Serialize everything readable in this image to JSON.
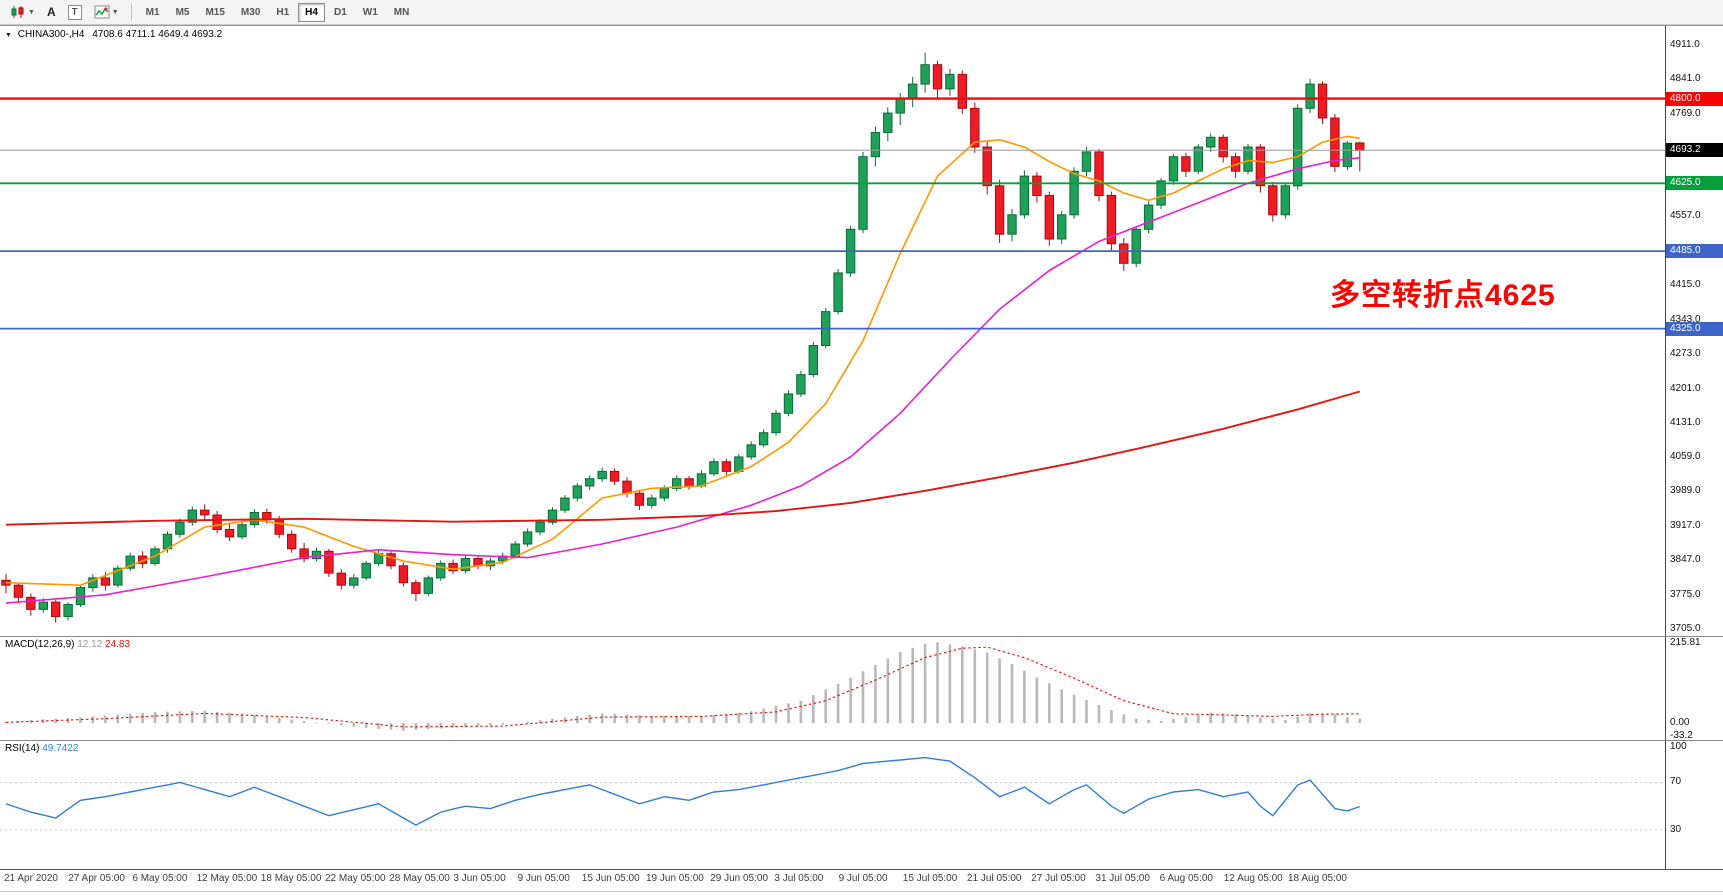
{
  "toolbar": {
    "chart_type_tooltip": "candlestick-chart",
    "buttons": [
      "A",
      "T"
    ],
    "timeframes": [
      "M1",
      "M5",
      "M15",
      "M30",
      "H1",
      "H4",
      "D1",
      "W1",
      "MN"
    ],
    "active_timeframe": "H4"
  },
  "chart": {
    "symbol_title": "CHINA300-,H4",
    "ohlc_text": "4708.6 4711.1 4649.4 4693.2",
    "annotation": "多空转折点4625",
    "annotation_color": "#ff0000",
    "price_ticks": [
      {
        "t": "4911.0",
        "v": 4911
      },
      {
        "t": "4841.0",
        "v": 4841
      },
      {
        "t": "4769.0",
        "v": 4769
      },
      {
        "t": "4557.0",
        "v": 4557
      },
      {
        "t": "4415.0",
        "v": 4415
      },
      {
        "t": "4343.0",
        "v": 4343
      },
      {
        "t": "4273.0",
        "v": 4273
      },
      {
        "t": "4201.0",
        "v": 4201
      },
      {
        "t": "4131.0",
        "v": 4131
      },
      {
        "t": "4059.0",
        "v": 4059
      },
      {
        "t": "3989.0",
        "v": 3989
      },
      {
        "t": "3917.0",
        "v": 3917
      },
      {
        "t": "3847.0",
        "v": 3847
      },
      {
        "t": "3775.0",
        "v": 3775
      },
      {
        "t": "3705.0",
        "v": 3705
      }
    ],
    "price_badges": [
      {
        "t": "4800.0",
        "v": 4800,
        "bg": "#f40606"
      },
      {
        "t": "4693.2",
        "v": 4693.2,
        "bg": "#000000"
      },
      {
        "t": "4625.0",
        "v": 4625,
        "bg": "#089d3c"
      },
      {
        "t": "4485.0",
        "v": 4485,
        "bg": "#3e64c8"
      },
      {
        "t": "4325.0",
        "v": 4325,
        "bg": "#3e64c8"
      }
    ],
    "hlines": [
      {
        "name": "resistance-line-4800",
        "price": 4800,
        "color": "#f40606",
        "width": 2.4
      },
      {
        "name": "current-price-line",
        "price": 4693.2,
        "color": "#9c9c9c",
        "width": 1
      },
      {
        "name": "pivot-line-4625",
        "price": 4625,
        "color": "#089d3c",
        "width": 1.8
      },
      {
        "name": "support-line-4485",
        "price": 4485,
        "color": "#3e64c8",
        "width": 1.8
      },
      {
        "name": "support-line-4325",
        "price": 4325,
        "color": "#3e64c8",
        "width": 1.8
      }
    ]
  },
  "macd": {
    "label": "MACD(12,26,9)",
    "value_main": "12.12",
    "value_signal": "24.83",
    "ticks": [
      {
        "t": "215.81",
        "v": 215.81
      },
      {
        "t": "0.00",
        "v": 0
      },
      {
        "t": "-33.2",
        "v": -33.2
      }
    ]
  },
  "rsi": {
    "label": "RSI(14)",
    "value": "49.7422",
    "ticks": [
      {
        "t": "100",
        "v": 100
      },
      {
        "t": "70",
        "v": 70
      },
      {
        "t": "30",
        "v": 30
      }
    ],
    "levels": [
      70,
      30
    ]
  },
  "time_axis": [
    "21 Apr 2020",
    "27 Apr 05:00",
    "6 May 05:00",
    "12 May 05:00",
    "18 May 05:00",
    "22 May 05:00",
    "28 May 05:00",
    "3 Jun 05:00",
    "9 Jun 05:00",
    "15 Jun 05:00",
    "19 Jun 05:00",
    "29 Jun 05:00",
    "3 Jul 05:00",
    "9 Jul 05:00",
    "15 Jul 05:00",
    "21 Jul 05:00",
    "27 Jul 05:00",
    "31 Jul 05:00",
    "6 Aug 05:00",
    "12 Aug 05:00",
    "18 Aug 05:00"
  ],
  "chart_data": {
    "type": "candlestick",
    "price_range": [
      3690,
      4950
    ],
    "candles_ohlc": [
      [
        3805,
        3818,
        3778,
        3795
      ],
      [
        3795,
        3800,
        3758,
        3770
      ],
      [
        3770,
        3778,
        3732,
        3745
      ],
      [
        3745,
        3768,
        3738,
        3760
      ],
      [
        3760,
        3765,
        3718,
        3730
      ],
      [
        3730,
        3760,
        3722,
        3755
      ],
      [
        3755,
        3795,
        3750,
        3790
      ],
      [
        3790,
        3818,
        3782,
        3810
      ],
      [
        3810,
        3822,
        3784,
        3795
      ],
      [
        3795,
        3836,
        3790,
        3830
      ],
      [
        3830,
        3862,
        3824,
        3855
      ],
      [
        3855,
        3865,
        3830,
        3840
      ],
      [
        3840,
        3876,
        3835,
        3870
      ],
      [
        3870,
        3906,
        3862,
        3900
      ],
      [
        3900,
        3932,
        3893,
        3925
      ],
      [
        3925,
        3958,
        3918,
        3950
      ],
      [
        3950,
        3962,
        3930,
        3940
      ],
      [
        3940,
        3948,
        3902,
        3910
      ],
      [
        3910,
        3922,
        3886,
        3895
      ],
      [
        3895,
        3928,
        3890,
        3920
      ],
      [
        3920,
        3952,
        3914,
        3945
      ],
      [
        3945,
        3953,
        3922,
        3930
      ],
      [
        3930,
        3938,
        3892,
        3900
      ],
      [
        3900,
        3908,
        3862,
        3870
      ],
      [
        3870,
        3882,
        3842,
        3850
      ],
      [
        3850,
        3872,
        3845,
        3865
      ],
      [
        3865,
        3870,
        3812,
        3820
      ],
      [
        3820,
        3828,
        3786,
        3795
      ],
      [
        3795,
        3818,
        3788,
        3810
      ],
      [
        3810,
        3845,
        3805,
        3840
      ],
      [
        3840,
        3868,
        3834,
        3860
      ],
      [
        3860,
        3866,
        3828,
        3835
      ],
      [
        3835,
        3842,
        3792,
        3800
      ],
      [
        3800,
        3806,
        3762,
        3778
      ],
      [
        3778,
        3815,
        3772,
        3810
      ],
      [
        3810,
        3846,
        3804,
        3840
      ],
      [
        3840,
        3848,
        3818,
        3825
      ],
      [
        3825,
        3856,
        3820,
        3850
      ],
      [
        3850,
        3857,
        3828,
        3835
      ],
      [
        3835,
        3852,
        3826,
        3845
      ],
      [
        3845,
        3862,
        3838,
        3855
      ],
      [
        3855,
        3886,
        3850,
        3880
      ],
      [
        3880,
        3912,
        3874,
        3905
      ],
      [
        3905,
        3931,
        3898,
        3925
      ],
      [
        3925,
        3956,
        3920,
        3950
      ],
      [
        3950,
        3981,
        3944,
        3975
      ],
      [
        3975,
        4006,
        3968,
        4000
      ],
      [
        4000,
        4022,
        3992,
        4015
      ],
      [
        4015,
        4038,
        4008,
        4030
      ],
      [
        4030,
        4036,
        4002,
        4010
      ],
      [
        4010,
        4018,
        3976,
        3985
      ],
      [
        3985,
        3992,
        3950,
        3960
      ],
      [
        3960,
        3982,
        3954,
        3975
      ],
      [
        3975,
        4001,
        3968,
        3995
      ],
      [
        3995,
        4022,
        3990,
        4015
      ],
      [
        4015,
        4021,
        3992,
        4000
      ],
      [
        4000,
        4032,
        3996,
        4025
      ],
      [
        4025,
        4057,
        4020,
        4050
      ],
      [
        4050,
        4056,
        4022,
        4030
      ],
      [
        4030,
        4066,
        4025,
        4060
      ],
      [
        4060,
        4092,
        4054,
        4085
      ],
      [
        4085,
        4117,
        4080,
        4110
      ],
      [
        4110,
        4157,
        4104,
        4150
      ],
      [
        4150,
        4197,
        4144,
        4190
      ],
      [
        4190,
        4238,
        4184,
        4230
      ],
      [
        4230,
        4298,
        4224,
        4290
      ],
      [
        4290,
        4368,
        4284,
        4360
      ],
      [
        4360,
        4448,
        4354,
        4440
      ],
      [
        4440,
        4538,
        4432,
        4530
      ],
      [
        4530,
        4690,
        4522,
        4680
      ],
      [
        4680,
        4742,
        4660,
        4730
      ],
      [
        4730,
        4782,
        4712,
        4770
      ],
      [
        4770,
        4812,
        4745,
        4800
      ],
      [
        4800,
        4845,
        4782,
        4830
      ],
      [
        4830,
        4895,
        4812,
        4870
      ],
      [
        4870,
        4878,
        4800,
        4820
      ],
      [
        4820,
        4862,
        4806,
        4850
      ],
      [
        4850,
        4858,
        4768,
        4780
      ],
      [
        4780,
        4792,
        4688,
        4700
      ],
      [
        4700,
        4712,
        4602,
        4620
      ],
      [
        4620,
        4632,
        4502,
        4520
      ],
      [
        4520,
        4572,
        4505,
        4560
      ],
      [
        4560,
        4652,
        4552,
        4640
      ],
      [
        4640,
        4648,
        4585,
        4600
      ],
      [
        4600,
        4608,
        4496,
        4510
      ],
      [
        4510,
        4568,
        4500,
        4560
      ],
      [
        4560,
        4658,
        4552,
        4650
      ],
      [
        4650,
        4700,
        4640,
        4690
      ],
      [
        4690,
        4696,
        4588,
        4600
      ],
      [
        4600,
        4608,
        4486,
        4500
      ],
      [
        4500,
        4512,
        4444,
        4460
      ],
      [
        4460,
        4536,
        4452,
        4530
      ],
      [
        4530,
        4588,
        4522,
        4580
      ],
      [
        4580,
        4636,
        4572,
        4630
      ],
      [
        4630,
        4686,
        4622,
        4680
      ],
      [
        4680,
        4688,
        4638,
        4650
      ],
      [
        4650,
        4706,
        4644,
        4700
      ],
      [
        4700,
        4728,
        4690,
        4720
      ],
      [
        4720,
        4726,
        4668,
        4680
      ],
      [
        4680,
        4688,
        4636,
        4650
      ],
      [
        4650,
        4706,
        4644,
        4700
      ],
      [
        4700,
        4706,
        4606,
        4620
      ],
      [
        4620,
        4628,
        4546,
        4560
      ],
      [
        4560,
        4626,
        4552,
        4620
      ],
      [
        4620,
        4788,
        4612,
        4780
      ],
      [
        4780,
        4841,
        4770,
        4830
      ],
      [
        4830,
        4836,
        4748,
        4760
      ],
      [
        4760,
        4768,
        4648,
        4660
      ],
      [
        4660,
        4712,
        4652,
        4708
      ],
      [
        4708.6,
        4711.1,
        4649.4,
        4693.2
      ]
    ],
    "ma_fast_orange": [
      [
        0,
        3800
      ],
      [
        6,
        3795
      ],
      [
        12,
        3855
      ],
      [
        16,
        3915
      ],
      [
        20,
        3930
      ],
      [
        24,
        3915
      ],
      [
        28,
        3875
      ],
      [
        32,
        3845
      ],
      [
        36,
        3828
      ],
      [
        40,
        3842
      ],
      [
        44,
        3890
      ],
      [
        48,
        3975
      ],
      [
        52,
        3995
      ],
      [
        56,
        4000
      ],
      [
        60,
        4040
      ],
      [
        63,
        4090
      ],
      [
        66,
        4170
      ],
      [
        69,
        4300
      ],
      [
        72,
        4480
      ],
      [
        75,
        4640
      ],
      [
        78,
        4710
      ],
      [
        80,
        4715
      ],
      [
        82,
        4700
      ],
      [
        84,
        4670
      ],
      [
        86,
        4645
      ],
      [
        88,
        4630
      ],
      [
        90,
        4605
      ],
      [
        92,
        4590
      ],
      [
        94,
        4605
      ],
      [
        96,
        4630
      ],
      [
        98,
        4655
      ],
      [
        100,
        4672
      ],
      [
        102,
        4668
      ],
      [
        104,
        4680
      ],
      [
        106,
        4710
      ],
      [
        108,
        4722
      ],
      [
        109,
        4718
      ]
    ],
    "ma_mid_magenta": [
      [
        0,
        3758
      ],
      [
        8,
        3775
      ],
      [
        16,
        3812
      ],
      [
        24,
        3852
      ],
      [
        30,
        3868
      ],
      [
        36,
        3858
      ],
      [
        42,
        3852
      ],
      [
        48,
        3880
      ],
      [
        54,
        3915
      ],
      [
        60,
        3960
      ],
      [
        64,
        4000
      ],
      [
        68,
        4060
      ],
      [
        72,
        4150
      ],
      [
        76,
        4260
      ],
      [
        80,
        4365
      ],
      [
        84,
        4445
      ],
      [
        88,
        4505
      ],
      [
        92,
        4545
      ],
      [
        96,
        4585
      ],
      [
        100,
        4625
      ],
      [
        104,
        4655
      ],
      [
        107,
        4672
      ],
      [
        109,
        4678
      ]
    ],
    "ma_slow_red": [
      [
        0,
        3920
      ],
      [
        12,
        3928
      ],
      [
        24,
        3932
      ],
      [
        36,
        3926
      ],
      [
        48,
        3930
      ],
      [
        56,
        3938
      ],
      [
        62,
        3948
      ],
      [
        68,
        3965
      ],
      [
        74,
        3990
      ],
      [
        80,
        4018
      ],
      [
        86,
        4048
      ],
      [
        92,
        4082
      ],
      [
        98,
        4118
      ],
      [
        104,
        4158
      ],
      [
        109,
        4195
      ]
    ],
    "macd_range": [
      -45,
      230
    ],
    "macd_line_anchors": [
      [
        0,
        4
      ],
      [
        4,
        12
      ],
      [
        8,
        20
      ],
      [
        12,
        30
      ],
      [
        16,
        33
      ],
      [
        20,
        22
      ],
      [
        24,
        6
      ],
      [
        28,
        -10
      ],
      [
        32,
        -20
      ],
      [
        36,
        -12
      ],
      [
        40,
        -4
      ],
      [
        44,
        12
      ],
      [
        48,
        26
      ],
      [
        52,
        20
      ],
      [
        56,
        18
      ],
      [
        60,
        32
      ],
      [
        64,
        60
      ],
      [
        67,
        105
      ],
      [
        70,
        155
      ],
      [
        72,
        190
      ],
      [
        74,
        212
      ],
      [
        75,
        216
      ],
      [
        77,
        205
      ],
      [
        79,
        188
      ],
      [
        81,
        158
      ],
      [
        83,
        122
      ],
      [
        85,
        90
      ],
      [
        87,
        62
      ],
      [
        89,
        35
      ],
      [
        91,
        12
      ],
      [
        93,
        6
      ],
      [
        95,
        16
      ],
      [
        97,
        28
      ],
      [
        99,
        24
      ],
      [
        101,
        14
      ],
      [
        103,
        8
      ],
      [
        105,
        26
      ],
      [
        107,
        24
      ],
      [
        108,
        16
      ],
      [
        109,
        12.12
      ]
    ],
    "macd_signal_anchors": [
      [
        0,
        2
      ],
      [
        8,
        12
      ],
      [
        16,
        26
      ],
      [
        24,
        15
      ],
      [
        32,
        -10
      ],
      [
        40,
        -8
      ],
      [
        48,
        16
      ],
      [
        56,
        18
      ],
      [
        62,
        30
      ],
      [
        66,
        60
      ],
      [
        70,
        115
      ],
      [
        74,
        175
      ],
      [
        77,
        200
      ],
      [
        79,
        203
      ],
      [
        82,
        175
      ],
      [
        86,
        120
      ],
      [
        90,
        60
      ],
      [
        94,
        25
      ],
      [
        98,
        22
      ],
      [
        102,
        18
      ],
      [
        106,
        24
      ],
      [
        109,
        24.83
      ]
    ],
    "rsi_range": [
      -3,
      105
    ],
    "rsi_anchors": [
      [
        0,
        52
      ],
      [
        2,
        45
      ],
      [
        4,
        40
      ],
      [
        6,
        55
      ],
      [
        8,
        58
      ],
      [
        10,
        62
      ],
      [
        12,
        66
      ],
      [
        14,
        70
      ],
      [
        16,
        64
      ],
      [
        18,
        58
      ],
      [
        20,
        66
      ],
      [
        22,
        58
      ],
      [
        24,
        50
      ],
      [
        26,
        42
      ],
      [
        28,
        47
      ],
      [
        30,
        52
      ],
      [
        32,
        40
      ],
      [
        33,
        34
      ],
      [
        35,
        45
      ],
      [
        37,
        50
      ],
      [
        39,
        48
      ],
      [
        41,
        55
      ],
      [
        43,
        60
      ],
      [
        45,
        64
      ],
      [
        47,
        68
      ],
      [
        49,
        60
      ],
      [
        51,
        52
      ],
      [
        53,
        58
      ],
      [
        55,
        55
      ],
      [
        57,
        62
      ],
      [
        59,
        64
      ],
      [
        61,
        68
      ],
      [
        63,
        72
      ],
      [
        65,
        76
      ],
      [
        67,
        80
      ],
      [
        69,
        86
      ],
      [
        71,
        88
      ],
      [
        73,
        90
      ],
      [
        74,
        91
      ],
      [
        76,
        88
      ],
      [
        78,
        74
      ],
      [
        80,
        58
      ],
      [
        82,
        66
      ],
      [
        84,
        52
      ],
      [
        86,
        64
      ],
      [
        87,
        68
      ],
      [
        89,
        50
      ],
      [
        90,
        44
      ],
      [
        92,
        56
      ],
      [
        94,
        62
      ],
      [
        96,
        64
      ],
      [
        98,
        58
      ],
      [
        100,
        62
      ],
      [
        101,
        50
      ],
      [
        102,
        42
      ],
      [
        104,
        68
      ],
      [
        105,
        72
      ],
      [
        107,
        48
      ],
      [
        108,
        46
      ],
      [
        109,
        49.74
      ]
    ]
  }
}
